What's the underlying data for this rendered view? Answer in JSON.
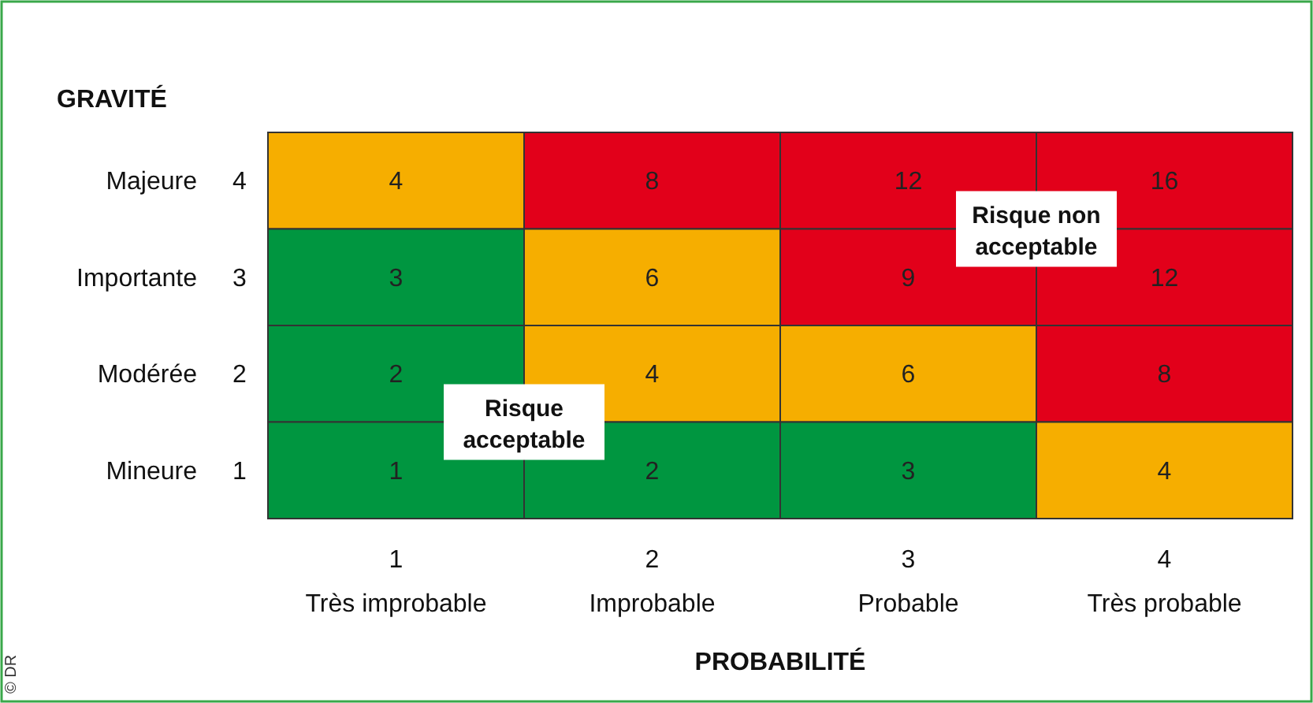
{
  "chart_data": {
    "type": "heatmap",
    "xlabel": "PROBABILITÉ",
    "ylabel": "GRAVITÉ",
    "categories": [
      "1\nTrès improbable",
      "2\nImprobable",
      "3\nProbable",
      "4\nTrès probable"
    ],
    "y_categories": [
      "Majeure",
      "Importante",
      "Modérée",
      "Mineure"
    ],
    "y2_categories": [
      "4",
      "3",
      "2",
      "1"
    ],
    "data_labels": true,
    "cells": [
      [
        4,
        8,
        12,
        16
      ],
      [
        3,
        6,
        9,
        12
      ],
      [
        2,
        4,
        6,
        8
      ],
      [
        1,
        2,
        3,
        4
      ]
    ],
    "colors": [
      [
        "#f6ae00",
        "#e2001a",
        "#e2001a",
        "#e2001a"
      ],
      [
        "#009640",
        "#f6ae00",
        "#e2001a",
        "#e2001a"
      ],
      [
        "#009640",
        "#f6ae00",
        "#f6ae00",
        "#e2001a"
      ],
      [
        "#009640",
        "#009640",
        "#009640",
        "#f6ae00"
      ]
    ],
    "annotations": [
      "Risque\nacceptable",
      "Risque non\nacceptable",
      "© DR"
    ]
  }
}
